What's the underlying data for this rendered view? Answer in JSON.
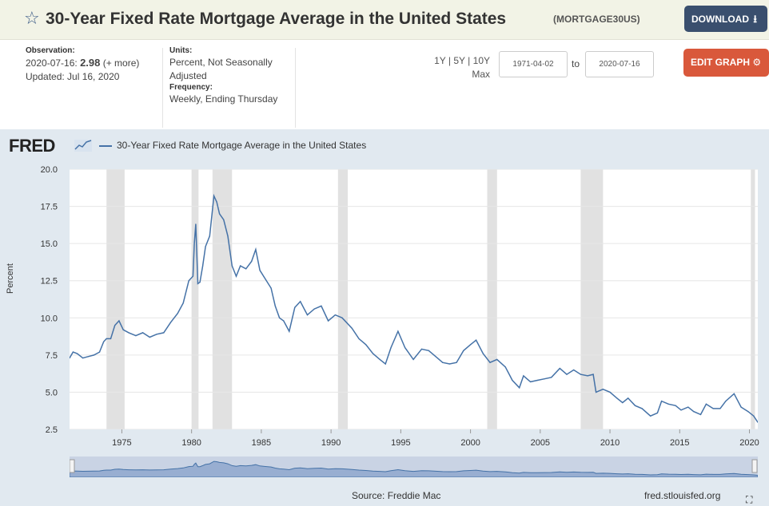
{
  "header": {
    "title": "30-Year Fixed Rate Mortgage Average in the United States",
    "series_id": "(MORTGAGE30US)",
    "download_label": "DOWNLOAD"
  },
  "observation": {
    "label": "Observation:",
    "date": "2020-07-16:",
    "value": "2.98",
    "more": "(+ more)",
    "updated": "Updated: Jul 16, 2020"
  },
  "units": {
    "label": "Units:",
    "value": "Percent, Not Seasonally Adjusted",
    "frequency_label": "Frequency:",
    "frequency_value": "Weekly, Ending Thursday"
  },
  "range_buttons": [
    "1Y",
    "5Y",
    "10Y",
    "Max"
  ],
  "date_range": {
    "start": "1971-04-02",
    "to": "to",
    "end": "2020-07-16"
  },
  "edit_label": "EDIT GRAPH",
  "logo_text": "FRED",
  "source": "Source: Freddie Mac",
  "credit": "fred.stlouisfed.org",
  "colors": {
    "series": "#4572a7",
    "recession": "#e1e1e1",
    "chart_bg": "#e1e9f0",
    "edit": "#d9583b",
    "download": "#3a4f6e"
  },
  "chart_data": {
    "type": "line",
    "title": "",
    "legend": "30-Year Fixed Rate Mortgage Average in the United States",
    "ylabel": "Percent",
    "xlabel": "",
    "xlim": [
      1971.25,
      2020.6
    ],
    "ylim": [
      2.5,
      20.0
    ],
    "yticks": [
      "2.5",
      "5.0",
      "7.5",
      "10.0",
      "12.5",
      "15.0",
      "17.5",
      "20.0"
    ],
    "xticks": [
      "1975",
      "1980",
      "1985",
      "1990",
      "1995",
      "2000",
      "2005",
      "2010",
      "2015",
      "2020"
    ],
    "recessions": [
      [
        1973.9,
        1975.2
      ],
      [
        1980.0,
        1980.5
      ],
      [
        1981.5,
        1982.9
      ],
      [
        1990.5,
        1991.2
      ],
      [
        2001.2,
        2001.9
      ],
      [
        2007.9,
        2009.5
      ],
      [
        2020.1,
        2020.4
      ]
    ],
    "series": [
      {
        "name": "30-Year Fixed Rate Mortgage Average in the United States",
        "x": [
          1971.25,
          1971.5,
          1971.8,
          1972.2,
          1972.6,
          1973.0,
          1973.4,
          1973.7,
          1973.9,
          1974.2,
          1974.5,
          1974.8,
          1975.1,
          1975.5,
          1976.0,
          1976.5,
          1977.0,
          1977.5,
          1978.0,
          1978.5,
          1979.0,
          1979.4,
          1979.8,
          1980.1,
          1980.2,
          1980.3,
          1980.45,
          1980.6,
          1980.8,
          1981.0,
          1981.3,
          1981.6,
          1981.8,
          1982.0,
          1982.3,
          1982.6,
          1982.9,
          1983.2,
          1983.5,
          1983.9,
          1984.3,
          1984.6,
          1984.9,
          1985.3,
          1985.7,
          1986.0,
          1986.3,
          1986.6,
          1987.0,
          1987.4,
          1987.8,
          1988.3,
          1988.8,
          1989.3,
          1989.8,
          1990.3,
          1990.8,
          1991.5,
          1992.0,
          1992.5,
          1993.0,
          1993.5,
          1993.9,
          1994.3,
          1994.8,
          1995.3,
          1995.9,
          1996.5,
          1997.0,
          1997.5,
          1998.0,
          1998.5,
          1999.0,
          1999.5,
          2000.0,
          2000.4,
          2000.9,
          2001.4,
          2001.9,
          2002.5,
          2003.0,
          2003.5,
          2003.8,
          2004.3,
          2004.8,
          2005.3,
          2005.8,
          2006.4,
          2006.9,
          2007.4,
          2007.9,
          2008.4,
          2008.8,
          2009.0,
          2009.5,
          2010.0,
          2010.5,
          2010.9,
          2011.3,
          2011.8,
          2012.3,
          2012.9,
          2013.4,
          2013.7,
          2014.2,
          2014.7,
          2015.1,
          2015.6,
          2016.0,
          2016.5,
          2016.9,
          2017.4,
          2017.9,
          2018.3,
          2018.9,
          2019.4,
          2019.9,
          2020.3,
          2020.6
        ],
        "values": [
          7.3,
          7.7,
          7.6,
          7.3,
          7.4,
          7.5,
          7.7,
          8.4,
          8.6,
          8.6,
          9.5,
          9.8,
          9.2,
          9.0,
          8.8,
          9.0,
          8.7,
          8.9,
          9.0,
          9.7,
          10.3,
          11.0,
          12.5,
          12.8,
          15.0,
          16.3,
          12.3,
          12.4,
          13.5,
          14.8,
          15.5,
          18.2,
          17.8,
          17.0,
          16.6,
          15.5,
          13.5,
          12.8,
          13.5,
          13.3,
          13.8,
          14.6,
          13.2,
          12.6,
          12.0,
          10.8,
          10.0,
          9.8,
          9.1,
          10.7,
          11.1,
          10.2,
          10.6,
          10.8,
          9.8,
          10.2,
          10.0,
          9.3,
          8.6,
          8.2,
          7.6,
          7.2,
          6.9,
          8.0,
          9.1,
          8.0,
          7.2,
          7.9,
          7.8,
          7.4,
          7.0,
          6.9,
          7.0,
          7.8,
          8.2,
          8.5,
          7.6,
          7.0,
          7.2,
          6.7,
          5.8,
          5.3,
          6.1,
          5.7,
          5.8,
          5.9,
          6.0,
          6.6,
          6.2,
          6.5,
          6.2,
          6.1,
          6.2,
          5.0,
          5.2,
          5.0,
          4.6,
          4.3,
          4.6,
          4.1,
          3.9,
          3.4,
          3.6,
          4.4,
          4.2,
          4.1,
          3.8,
          4.0,
          3.7,
          3.5,
          4.2,
          3.9,
          3.9,
          4.4,
          4.9,
          4.0,
          3.7,
          3.4,
          2.98
        ]
      }
    ]
  }
}
